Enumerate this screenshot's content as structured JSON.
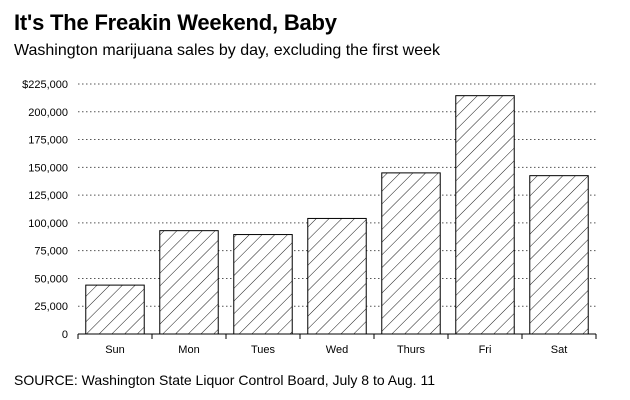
{
  "chart_data": {
    "type": "bar",
    "title": "It's The Freakin Weekend, Baby",
    "subtitle": "Washington marijuana sales by day, excluding the first week",
    "source": "SOURCE: Washington State Liquor Control Board, July 8 to Aug. 11",
    "categories": [
      "Sun",
      "Mon",
      "Tues",
      "Wed",
      "Thurs",
      "Fri",
      "Sat"
    ],
    "values": [
      44000,
      93000,
      89500,
      104000,
      145000,
      214500,
      142500
    ],
    "ylim": [
      0,
      225000
    ],
    "yticks": [
      {
        "value": 0,
        "label": "0"
      },
      {
        "value": 25000,
        "label": "25,000"
      },
      {
        "value": 50000,
        "label": "50,000"
      },
      {
        "value": 75000,
        "label": "75,000"
      },
      {
        "value": 100000,
        "label": "100,000"
      },
      {
        "value": 125000,
        "label": "125,000"
      },
      {
        "value": 150000,
        "label": "150,000"
      },
      {
        "value": 175000,
        "label": "175,000"
      },
      {
        "value": 200000,
        "label": "200,000"
      },
      {
        "value": 225000,
        "label": "$225,000"
      }
    ],
    "grid": true,
    "bar_fill": "hatched",
    "colors": {
      "bar_stroke": "#000000",
      "grid": "#555555",
      "background": "#ffffff"
    }
  }
}
